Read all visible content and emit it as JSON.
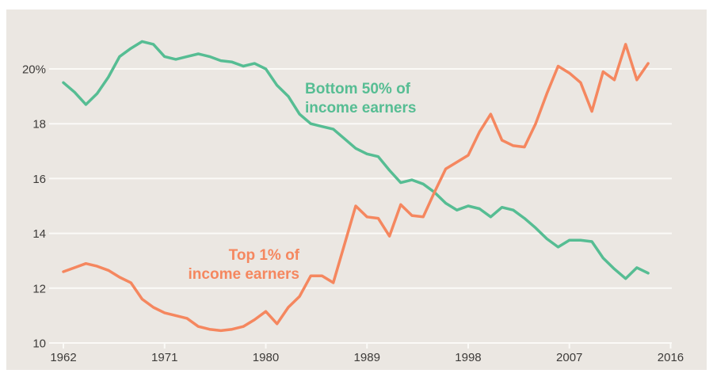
{
  "page": {
    "background_color": "#ffffff",
    "panel_color": "#ebe7e2",
    "gridline_color": "#fbfaf7",
    "tick_label_color": "#3d3b39"
  },
  "chart_data": {
    "type": "line",
    "title": "",
    "xlabel": "",
    "ylabel": "",
    "grid": true,
    "legend_position": "inline-annotations",
    "xlim": [
      1962,
      2016
    ],
    "ylim": [
      10,
      21.6
    ],
    "x": [
      1962,
      1963,
      1964,
      1965,
      1966,
      1967,
      1968,
      1969,
      1970,
      1971,
      1972,
      1973,
      1974,
      1975,
      1976,
      1977,
      1978,
      1979,
      1980,
      1981,
      1982,
      1983,
      1984,
      1985,
      1986,
      1987,
      1988,
      1989,
      1990,
      1991,
      1992,
      1993,
      1994,
      1995,
      1996,
      1997,
      1998,
      1999,
      2000,
      2001,
      2002,
      2003,
      2004,
      2005,
      2006,
      2007,
      2008,
      2009,
      2010,
      2011,
      2012,
      2013,
      2014
    ],
    "series": [
      {
        "name": "Bottom 50% of income earners",
        "color": "#56bd93",
        "values": [
          19.5,
          19.15,
          18.7,
          19.1,
          19.7,
          20.45,
          20.75,
          21.0,
          20.9,
          20.45,
          20.35,
          20.45,
          20.55,
          20.45,
          20.3,
          20.25,
          20.1,
          20.2,
          20.0,
          19.4,
          19.0,
          18.35,
          18.0,
          17.9,
          17.8,
          17.45,
          17.1,
          16.9,
          16.8,
          16.3,
          15.85,
          15.95,
          15.8,
          15.5,
          15.1,
          14.85,
          15.0,
          14.9,
          14.6,
          14.95,
          14.85,
          14.55,
          14.2,
          13.8,
          13.5,
          13.75,
          13.75,
          13.7,
          13.1,
          12.7,
          12.35,
          12.75,
          12.55
        ]
      },
      {
        "name": "Top 1% of income earners",
        "color": "#f5875f",
        "values": [
          12.6,
          12.75,
          12.9,
          12.8,
          12.65,
          12.4,
          12.2,
          11.6,
          11.3,
          11.1,
          11.0,
          10.9,
          10.6,
          10.5,
          10.45,
          10.5,
          10.6,
          10.85,
          11.15,
          10.7,
          11.3,
          11.7,
          12.45,
          12.45,
          12.2,
          13.6,
          15.0,
          14.6,
          14.55,
          13.9,
          15.05,
          14.65,
          14.6,
          15.5,
          16.35,
          16.6,
          16.85,
          17.7,
          18.35,
          17.4,
          17.2,
          17.15,
          18.0,
          19.1,
          20.1,
          19.85,
          19.5,
          18.45,
          19.9,
          19.6,
          20.9,
          19.6,
          20.2
        ]
      }
    ],
    "x_ticks": [
      {
        "year": 1962,
        "label": "1962"
      },
      {
        "year": 1971,
        "label": "1971"
      },
      {
        "year": 1980,
        "label": "1980"
      },
      {
        "year": 1989,
        "label": "1989"
      },
      {
        "year": 1998,
        "label": "1998"
      },
      {
        "year": 2007,
        "label": "2007"
      },
      {
        "year": 2016,
        "label": "2016"
      }
    ],
    "y_ticks": [
      {
        "value": 10,
        "label": "10"
      },
      {
        "value": 12,
        "label": "12"
      },
      {
        "value": 14,
        "label": "14"
      },
      {
        "value": 16,
        "label": "16"
      },
      {
        "value": 18,
        "label": "18"
      },
      {
        "value": 20,
        "label": "20%"
      }
    ],
    "annotations": [
      {
        "id": "bottom50",
        "line1": "Bottom 50% of",
        "line2": "income earners",
        "color": "#56bd93"
      },
      {
        "id": "top1",
        "line1": "Top 1% of",
        "line2": "income earners",
        "color": "#f5875f"
      }
    ]
  }
}
